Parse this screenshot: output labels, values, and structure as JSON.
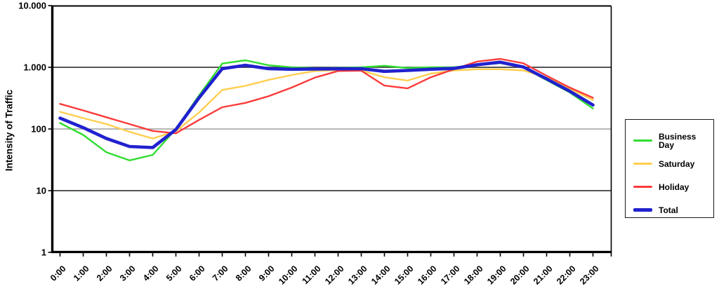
{
  "y_axis_title": "Intensity of Traffic",
  "chart_data": {
    "type": "line",
    "title": "",
    "xlabel": "",
    "ylabel": "Intensity of Traffic",
    "y_scale": "log",
    "ylim": [
      1,
      10000
    ],
    "legend_position": "right",
    "grid": "horizontal",
    "y_ticks": [
      {
        "label": "1",
        "value": 1
      },
      {
        "label": "10",
        "value": 10
      },
      {
        "label": "100",
        "value": 100
      },
      {
        "label": "1.000",
        "value": 1000
      },
      {
        "label": "10.000",
        "value": 10000
      }
    ],
    "gridlines": [
      {
        "value": 10,
        "color": "#3d3d3d",
        "width": 1.8
      },
      {
        "value": 100,
        "color": "#9e9e9e",
        "width": 1.4
      },
      {
        "value": 1000,
        "color": "#3d3d3d",
        "width": 1.8
      }
    ],
    "x_categories": [
      "0:00",
      "1:00",
      "2:00",
      "3:00",
      "4:00",
      "5:00",
      "6:00",
      "7:00",
      "8:00",
      "9:00",
      "10:00",
      "11:00",
      "12:00",
      "13:00",
      "14:00",
      "15:00",
      "16:00",
      "17:00",
      "18:00",
      "19:00",
      "20:00",
      "21:00",
      "22:00",
      "23:00"
    ],
    "series": [
      {
        "name": "Business Day",
        "color": "#30dd30",
        "width": 2.4,
        "values": [
          125,
          80,
          42,
          31,
          38,
          100,
          350,
          1150,
          1300,
          1080,
          1000,
          970,
          980,
          1000,
          1060,
          975,
          1000,
          1000,
          1090,
          1170,
          990,
          620,
          390,
          215
        ]
      },
      {
        "name": "Saturday",
        "color": "#ffce4d",
        "width": 2.4,
        "values": [
          190,
          150,
          120,
          90,
          70,
          92,
          185,
          430,
          500,
          625,
          750,
          870,
          900,
          890,
          690,
          610,
          790,
          890,
          930,
          930,
          890,
          680,
          450,
          295
        ]
      },
      {
        "name": "Holiday",
        "color": "#fb3b3b",
        "width": 2.4,
        "values": [
          255,
          200,
          155,
          120,
          93,
          85,
          140,
          225,
          265,
          340,
          470,
          680,
          870,
          880,
          505,
          455,
          690,
          930,
          1240,
          1370,
          1160,
          730,
          470,
          320
        ]
      },
      {
        "name": "Total",
        "color": "#2121cf",
        "width": 4.6,
        "values": [
          150,
          105,
          70,
          52,
          50,
          98,
          320,
          950,
          1080,
          950,
          930,
          940,
          945,
          950,
          860,
          890,
          930,
          960,
          1100,
          1210,
          1010,
          650,
          410,
          245
        ]
      }
    ]
  }
}
